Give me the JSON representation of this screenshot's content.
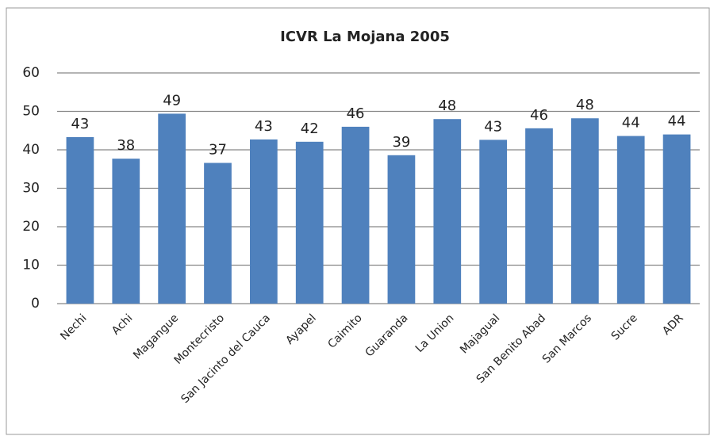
{
  "chart_data": {
    "type": "bar",
    "title": "ICVR La Mojana 2005",
    "categories": [
      "Nechi",
      "Achi",
      "Magangue",
      "Montecristo",
      "San Jacinto del Cauca",
      "Ayapel",
      "Caimito",
      "Guaranda",
      "La Union",
      "Majagual",
      "San Benito Abad",
      "San Marcos",
      "Sucre",
      "ADR"
    ],
    "values": [
      43.3,
      37.7,
      49.4,
      36.6,
      42.7,
      42.1,
      46.0,
      38.6,
      48.0,
      42.6,
      45.6,
      48.2,
      43.6,
      44.0
    ],
    "value_labels": [
      "43",
      "38",
      "49",
      "37",
      "43",
      "42",
      "46",
      "39",
      "48",
      "43",
      "46",
      "48",
      "44",
      "44"
    ],
    "color": "#4f81bd",
    "ylim": [
      0,
      60
    ],
    "yticks": [
      0,
      10,
      20,
      30,
      40,
      50,
      60
    ],
    "grid": true
  }
}
